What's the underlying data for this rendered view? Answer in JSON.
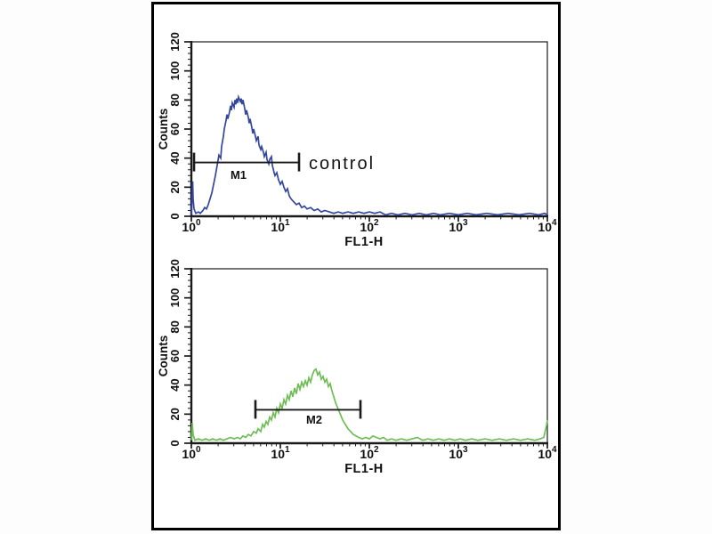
{
  "figure": {
    "background": "#fdfdfd",
    "frame_color": "#000000",
    "axis_color": "#1a1a1a",
    "gate_color": "#1a1a1a"
  },
  "chart_data": [
    {
      "type": "line",
      "title": "",
      "xlabel": "FL1-H",
      "ylabel": "Counts",
      "x_scale": "log10",
      "xlim": [
        1,
        10000
      ],
      "x_decade_exponents": [
        0,
        1,
        2,
        3,
        4
      ],
      "ylim": [
        0,
        120
      ],
      "ytick_step": 20,
      "ytick_minor_step": 4,
      "grid": false,
      "legend": "none",
      "gate": {
        "label": "M1",
        "y_counts": 37,
        "x1_log10": 0.03,
        "x2_log10": 1.21
      },
      "annotation": {
        "text": "control",
        "y_counts": 37
      },
      "series": [
        {
          "name": "control",
          "color": "#3448A0",
          "points_log10x_counts": [
            [
              0.0,
              1
            ],
            [
              0.01,
              16
            ],
            [
              0.015,
              24
            ],
            [
              0.02,
              12
            ],
            [
              0.03,
              5
            ],
            [
              0.05,
              2
            ],
            [
              0.08,
              3
            ],
            [
              0.1,
              2
            ],
            [
              0.13,
              4
            ],
            [
              0.15,
              6
            ],
            [
              0.17,
              5
            ],
            [
              0.19,
              8
            ],
            [
              0.21,
              12
            ],
            [
              0.23,
              16
            ],
            [
              0.25,
              22
            ],
            [
              0.27,
              28
            ],
            [
              0.29,
              35
            ],
            [
              0.31,
              42
            ],
            [
              0.33,
              40
            ],
            [
              0.34,
              48
            ],
            [
              0.36,
              55
            ],
            [
              0.37,
              60
            ],
            [
              0.39,
              66
            ],
            [
              0.4,
              70
            ],
            [
              0.41,
              67
            ],
            [
              0.43,
              72
            ],
            [
              0.44,
              76
            ],
            [
              0.45,
              73
            ],
            [
              0.46,
              78
            ],
            [
              0.48,
              75
            ],
            [
              0.49,
              80
            ],
            [
              0.5,
              77
            ],
            [
              0.51,
              81
            ],
            [
              0.52,
              78
            ],
            [
              0.53,
              82
            ],
            [
              0.55,
              79
            ],
            [
              0.56,
              81
            ],
            [
              0.57,
              77
            ],
            [
              0.58,
              80
            ],
            [
              0.6,
              74
            ],
            [
              0.61,
              70
            ],
            [
              0.62,
              73
            ],
            [
              0.64,
              68
            ],
            [
              0.65,
              64
            ],
            [
              0.66,
              67
            ],
            [
              0.68,
              61
            ],
            [
              0.69,
              57
            ],
            [
              0.7,
              60
            ],
            [
              0.72,
              55
            ],
            [
              0.73,
              52
            ],
            [
              0.75,
              55
            ],
            [
              0.76,
              49
            ],
            [
              0.78,
              46
            ],
            [
              0.79,
              48
            ],
            [
              0.81,
              44
            ],
            [
              0.82,
              41
            ],
            [
              0.84,
              44
            ],
            [
              0.85,
              39
            ],
            [
              0.87,
              36
            ],
            [
              0.88,
              39
            ],
            [
              0.9,
              41
            ],
            [
              0.91,
              35
            ],
            [
              0.93,
              30
            ],
            [
              0.94,
              28
            ],
            [
              0.96,
              30
            ],
            [
              0.98,
              25
            ],
            [
              1.0,
              22
            ],
            [
              1.02,
              24
            ],
            [
              1.04,
              20
            ],
            [
              1.06,
              17
            ],
            [
              1.08,
              19
            ],
            [
              1.1,
              14
            ],
            [
              1.12,
              12
            ],
            [
              1.15,
              10
            ],
            [
              1.18,
              8
            ],
            [
              1.21,
              9
            ],
            [
              1.24,
              6
            ],
            [
              1.27,
              7
            ],
            [
              1.3,
              5
            ],
            [
              1.34,
              6
            ],
            [
              1.38,
              4
            ],
            [
              1.42,
              5
            ],
            [
              1.46,
              3
            ],
            [
              1.5,
              4
            ],
            [
              1.55,
              3
            ],
            [
              1.6,
              2
            ],
            [
              1.65,
              3
            ],
            [
              1.7,
              2
            ],
            [
              1.76,
              3
            ],
            [
              1.82,
              2
            ],
            [
              1.88,
              3
            ],
            [
              1.94,
              2
            ],
            [
              2.0,
              3
            ],
            [
              2.06,
              2
            ],
            [
              2.12,
              3
            ],
            [
              2.18,
              1
            ],
            [
              2.25,
              2
            ],
            [
              2.32,
              1
            ],
            [
              2.4,
              2
            ],
            [
              2.48,
              1
            ],
            [
              2.56,
              2
            ],
            [
              2.64,
              1
            ],
            [
              2.72,
              2
            ],
            [
              2.8,
              1
            ],
            [
              2.9,
              2
            ],
            [
              3.0,
              1
            ],
            [
              3.1,
              2
            ],
            [
              3.2,
              1
            ],
            [
              3.32,
              2
            ],
            [
              3.44,
              1
            ],
            [
              3.56,
              2
            ],
            [
              3.68,
              1
            ],
            [
              3.8,
              2
            ],
            [
              3.9,
              1
            ],
            [
              3.97,
              2
            ],
            [
              4.0,
              1
            ]
          ]
        }
      ]
    },
    {
      "type": "line",
      "title": "",
      "xlabel": "FL1-H",
      "ylabel": "Counts",
      "x_scale": "log10",
      "xlim": [
        1,
        10000
      ],
      "x_decade_exponents": [
        0,
        1,
        2,
        3,
        4
      ],
      "ylim": [
        0,
        120
      ],
      "ytick_step": 20,
      "ytick_minor_step": 4,
      "grid": false,
      "legend": "none",
      "gate": {
        "label": "M2",
        "y_counts": 23,
        "x1_log10": 0.72,
        "x2_log10": 1.9
      },
      "annotation": null,
      "series": [
        {
          "name": "",
          "color": "#6EBE55",
          "points_log10x_counts": [
            [
              0.0,
              2
            ],
            [
              0.01,
              14
            ],
            [
              0.02,
              6
            ],
            [
              0.04,
              2
            ],
            [
              0.08,
              3
            ],
            [
              0.12,
              2
            ],
            [
              0.16,
              3
            ],
            [
              0.2,
              2
            ],
            [
              0.24,
              3
            ],
            [
              0.28,
              2
            ],
            [
              0.32,
              3
            ],
            [
              0.36,
              2
            ],
            [
              0.4,
              3
            ],
            [
              0.44,
              4
            ],
            [
              0.48,
              3
            ],
            [
              0.52,
              4
            ],
            [
              0.55,
              3
            ],
            [
              0.58,
              5
            ],
            [
              0.61,
              4
            ],
            [
              0.64,
              6
            ],
            [
              0.67,
              5
            ],
            [
              0.7,
              8
            ],
            [
              0.73,
              7
            ],
            [
              0.75,
              10
            ],
            [
              0.78,
              8
            ],
            [
              0.8,
              13
            ],
            [
              0.82,
              11
            ],
            [
              0.84,
              15
            ],
            [
              0.86,
              13
            ],
            [
              0.88,
              18
            ],
            [
              0.9,
              16
            ],
            [
              0.92,
              21
            ],
            [
              0.94,
              18
            ],
            [
              0.96,
              24
            ],
            [
              0.98,
              21
            ],
            [
              1.0,
              27
            ],
            [
              1.02,
              24
            ],
            [
              1.04,
              30
            ],
            [
              1.06,
              27
            ],
            [
              1.08,
              33
            ],
            [
              1.1,
              30
            ],
            [
              1.12,
              36
            ],
            [
              1.14,
              32
            ],
            [
              1.16,
              38
            ],
            [
              1.18,
              34
            ],
            [
              1.2,
              41
            ],
            [
              1.22,
              37
            ],
            [
              1.24,
              42
            ],
            [
              1.26,
              39
            ],
            [
              1.28,
              43
            ],
            [
              1.3,
              40
            ],
            [
              1.32,
              45
            ],
            [
              1.34,
              42
            ],
            [
              1.36,
              47
            ],
            [
              1.38,
              50
            ],
            [
              1.4,
              51
            ],
            [
              1.42,
              47
            ],
            [
              1.44,
              49
            ],
            [
              1.46,
              44
            ],
            [
              1.48,
              46
            ],
            [
              1.5,
              42
            ],
            [
              1.52,
              44
            ],
            [
              1.54,
              39
            ],
            [
              1.56,
              41
            ],
            [
              1.58,
              36
            ],
            [
              1.6,
              32
            ],
            [
              1.62,
              28
            ],
            [
              1.64,
              25
            ],
            [
              1.66,
              22
            ],
            [
              1.68,
              19
            ],
            [
              1.7,
              16
            ],
            [
              1.73,
              13
            ],
            [
              1.76,
              10
            ],
            [
              1.79,
              8
            ],
            [
              1.82,
              6
            ],
            [
              1.85,
              5
            ],
            [
              1.88,
              4
            ],
            [
              1.92,
              3
            ],
            [
              1.96,
              4
            ],
            [
              2.0,
              3
            ],
            [
              2.04,
              5
            ],
            [
              2.08,
              4
            ],
            [
              2.12,
              3
            ],
            [
              2.16,
              4
            ],
            [
              2.2,
              2
            ],
            [
              2.25,
              3
            ],
            [
              2.3,
              2
            ],
            [
              2.36,
              3
            ],
            [
              2.42,
              2
            ],
            [
              2.48,
              3
            ],
            [
              2.54,
              4
            ],
            [
              2.6,
              2
            ],
            [
              2.66,
              3
            ],
            [
              2.72,
              2
            ],
            [
              2.78,
              3
            ],
            [
              2.84,
              2
            ],
            [
              2.9,
              3
            ],
            [
              2.96,
              2
            ],
            [
              3.02,
              3
            ],
            [
              3.08,
              2
            ],
            [
              3.15,
              3
            ],
            [
              3.22,
              2
            ],
            [
              3.3,
              3
            ],
            [
              3.38,
              2
            ],
            [
              3.46,
              3
            ],
            [
              3.54,
              2
            ],
            [
              3.62,
              3
            ],
            [
              3.7,
              2
            ],
            [
              3.78,
              3
            ],
            [
              3.86,
              2
            ],
            [
              3.92,
              3
            ],
            [
              3.96,
              4
            ],
            [
              3.99,
              12
            ],
            [
              4.0,
              16
            ]
          ]
        }
      ]
    }
  ]
}
